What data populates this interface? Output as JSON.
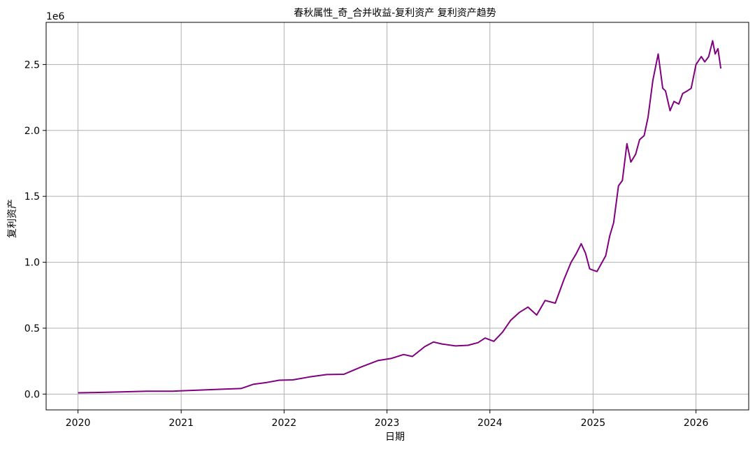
{
  "chart_data": {
    "type": "line",
    "title": "春秋属性_奇_合并收益-复利资产 复利资产趋势",
    "xlabel": "日期",
    "ylabel": "复利资产",
    "y_offset_label": "1e6",
    "xlim": [
      "2019-09-10",
      "2026-07-07"
    ],
    "ylim": [
      -120000,
      2820000
    ],
    "x_ticks": [
      "2020-01-01",
      "2021-01-01",
      "2022-01-01",
      "2023-01-01",
      "2024-01-01",
      "2025-01-01",
      "2026-01-01"
    ],
    "x_tick_labels": [
      "2020",
      "2021",
      "2022",
      "2023",
      "2024",
      "2025",
      "2026"
    ],
    "y_ticks": [
      0,
      500000,
      1000000,
      1500000,
      2000000,
      2500000
    ],
    "y_tick_labels": [
      "0.0",
      "0.5",
      "1.0",
      "1.5",
      "2.0",
      "2.5"
    ],
    "grid": true,
    "series": [
      {
        "color": "#800080",
        "x": [
          "2020-01-01",
          "2020-03-01",
          "2020-06-01",
          "2020-09-01",
          "2020-12-01",
          "2021-03-01",
          "2021-06-01",
          "2021-08-01",
          "2021-09-15",
          "2021-11-01",
          "2021-12-15",
          "2022-02-01",
          "2022-04-01",
          "2022-06-01",
          "2022-08-01",
          "2022-10-01",
          "2022-12-01",
          "2023-01-15",
          "2023-03-01",
          "2023-04-01",
          "2023-05-15",
          "2023-06-15",
          "2023-07-15",
          "2023-09-01",
          "2023-10-15",
          "2023-11-20",
          "2023-12-15",
          "2024-01-15",
          "2024-02-15",
          "2024-03-15",
          "2024-04-15",
          "2024-05-15",
          "2024-06-15",
          "2024-07-15",
          "2024-08-20",
          "2024-09-20",
          "2024-10-15",
          "2024-11-01",
          "2024-11-20",
          "2024-12-05",
          "2024-12-20",
          "2025-01-01",
          "2025-01-15",
          "2025-02-15",
          "2025-03-01",
          "2025-03-15",
          "2025-04-01",
          "2025-04-15",
          "2025-05-01",
          "2025-05-15",
          "2025-06-01",
          "2025-06-15",
          "2025-07-01",
          "2025-07-15",
          "2025-08-01",
          "2025-08-20",
          "2025-09-05",
          "2025-09-15",
          "2025-10-01",
          "2025-10-15",
          "2025-11-01",
          "2025-11-15",
          "2025-12-01",
          "2025-12-15",
          "2026-01-01",
          "2026-01-20",
          "2026-02-01",
          "2026-02-15",
          "2026-03-01",
          "2026-03-10",
          "2026-03-20",
          "2026-03-30"
        ],
        "y": [
          10000,
          12000,
          16000,
          22000,
          22000,
          30000,
          38000,
          42000,
          75000,
          88000,
          105000,
          108000,
          130000,
          148000,
          150000,
          205000,
          255000,
          270000,
          300000,
          285000,
          360000,
          395000,
          380000,
          365000,
          370000,
          390000,
          425000,
          400000,
          470000,
          560000,
          620000,
          660000,
          600000,
          710000,
          690000,
          870000,
          1000000,
          1060000,
          1140000,
          1070000,
          950000,
          940000,
          930000,
          1050000,
          1200000,
          1300000,
          1580000,
          1620000,
          1900000,
          1760000,
          1820000,
          1930000,
          1960000,
          2100000,
          2380000,
          2580000,
          2320000,
          2300000,
          2150000,
          2220000,
          2200000,
          2280000,
          2300000,
          2320000,
          2500000,
          2560000,
          2520000,
          2560000,
          2680000,
          2580000,
          2620000,
          2470000
        ]
      }
    ]
  }
}
